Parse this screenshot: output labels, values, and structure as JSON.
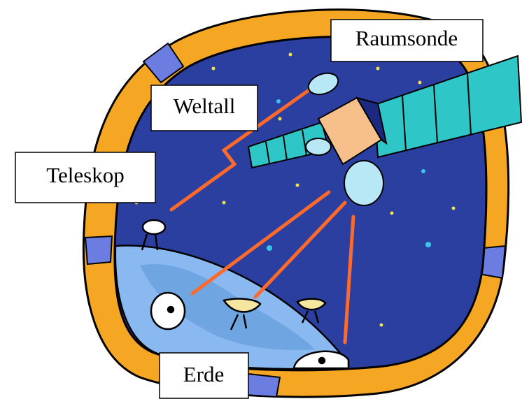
{
  "labels": {
    "probe": "Raumsonde",
    "space": "Weltall",
    "telescope": "Teleskop",
    "earth": "Erde"
  }
}
